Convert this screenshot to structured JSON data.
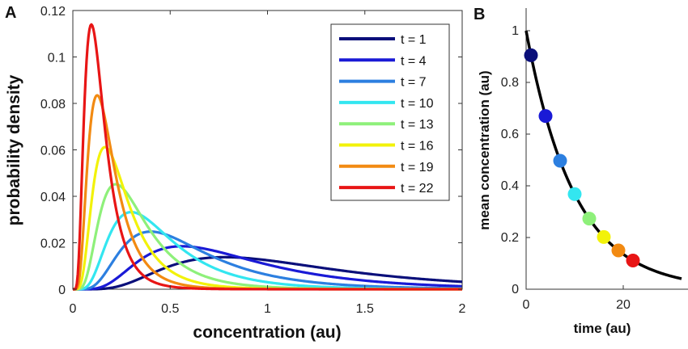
{
  "panels": {
    "a_letter": "A",
    "b_letter": "B"
  },
  "chart_data": [
    {
      "type": "line",
      "panel": "A",
      "title": "",
      "xlabel": "concentration (au)",
      "ylabel": "probability density",
      "xlim": [
        0,
        2
      ],
      "ylim": [
        0,
        0.12
      ],
      "xticks": [
        0,
        0.5,
        1,
        1.5,
        2
      ],
      "xtick_labels": [
        "0",
        "0.5",
        "1",
        "1.5",
        "2"
      ],
      "yticks": [
        0,
        0.02,
        0.04,
        0.06,
        0.08,
        0.1,
        0.12
      ],
      "ytick_labels": [
        "0",
        "0.02",
        "0.04",
        "0.06",
        "0.08",
        "0.1",
        "0.12"
      ],
      "grid": false,
      "legend_position": "top-right",
      "series": [
        {
          "name": "t = 1",
          "color": "#0a0f7a",
          "peak_x": 0.78,
          "peak_y": 0.0138
        },
        {
          "name": "t = 4",
          "color": "#1a1ad6",
          "peak_x": 0.56,
          "peak_y": 0.0185
        },
        {
          "name": "t = 7",
          "color": "#2c7fe0",
          "peak_x": 0.4,
          "peak_y": 0.0248
        },
        {
          "name": "t = 10",
          "color": "#33e6f0",
          "peak_x": 0.3,
          "peak_y": 0.0332
        },
        {
          "name": "t = 13",
          "color": "#8ef07a",
          "peak_x": 0.22,
          "peak_y": 0.0452
        },
        {
          "name": "t = 16",
          "color": "#f2f20a",
          "peak_x": 0.165,
          "peak_y": 0.0612
        },
        {
          "name": "t = 19",
          "color": "#f28a12",
          "peak_x": 0.125,
          "peak_y": 0.0835
        },
        {
          "name": "t = 22",
          "color": "#e81515",
          "peak_x": 0.095,
          "peak_y": 0.114
        }
      ]
    },
    {
      "type": "line",
      "panel": "B",
      "title": "",
      "xlabel": "time (au)",
      "ylabel": "mean concentration (au)",
      "xlim": [
        0,
        32
      ],
      "ylim": [
        0,
        1.05
      ],
      "xticks": [
        0,
        20
      ],
      "xtick_labels": [
        "0",
        "20"
      ],
      "yticks": [
        0,
        0.2,
        0.4,
        0.6,
        0.8,
        1
      ],
      "ytick_labels": [
        "0",
        "0.2",
        "0.4",
        "0.6",
        "0.8",
        "1"
      ],
      "grid": false,
      "curve": {
        "formula": "exp(-0.1*t)",
        "color": "#000000"
      },
      "points": [
        {
          "x": 1,
          "y": 0.905,
          "color": "#0a0f7a"
        },
        {
          "x": 4,
          "y": 0.67,
          "color": "#1a1ad6"
        },
        {
          "x": 7,
          "y": 0.497,
          "color": "#2c7fe0"
        },
        {
          "x": 10,
          "y": 0.368,
          "color": "#33e6f0"
        },
        {
          "x": 13,
          "y": 0.273,
          "color": "#8ef07a"
        },
        {
          "x": 16,
          "y": 0.202,
          "color": "#f2f20a"
        },
        {
          "x": 19,
          "y": 0.15,
          "color": "#f28a12"
        },
        {
          "x": 22,
          "y": 0.111,
          "color": "#e81515"
        }
      ]
    }
  ]
}
